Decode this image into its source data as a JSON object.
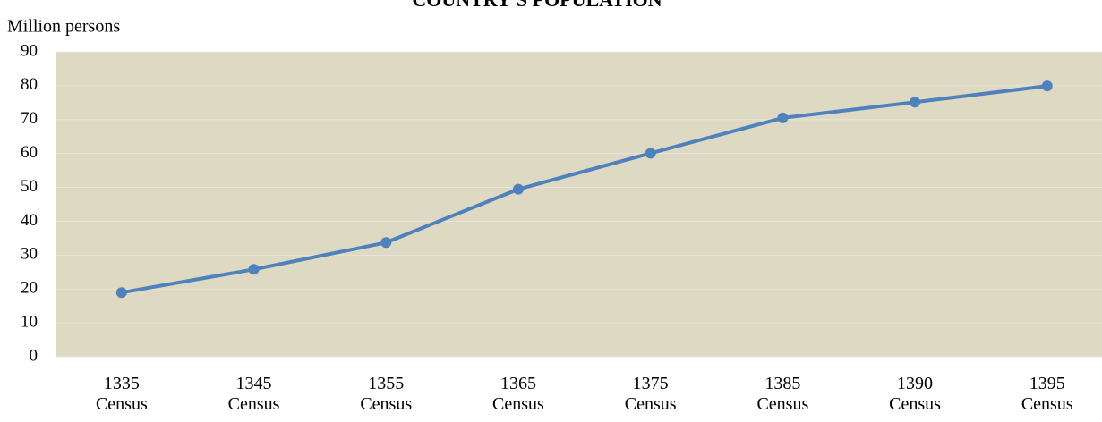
{
  "chart_data": {
    "type": "line",
    "title": "COUNTRY'S POPULATION",
    "y_label": "Million persons",
    "categories": [
      "1335 Census",
      "1345 Census",
      "1355 Census",
      "1365 Census",
      "1375 Census",
      "1385 Census",
      "1390 Census",
      "1395 Census"
    ],
    "series": [
      {
        "name": "Population",
        "color": "#4f81bd",
        "values": [
          18.95,
          25.79,
          33.71,
          49.45,
          60.06,
          70.5,
          75.15,
          79.93
        ]
      }
    ],
    "ylim": [
      0,
      90
    ],
    "yticks": [
      0,
      10,
      20,
      30,
      40,
      50,
      60,
      70,
      80,
      90
    ],
    "grid": true
  }
}
